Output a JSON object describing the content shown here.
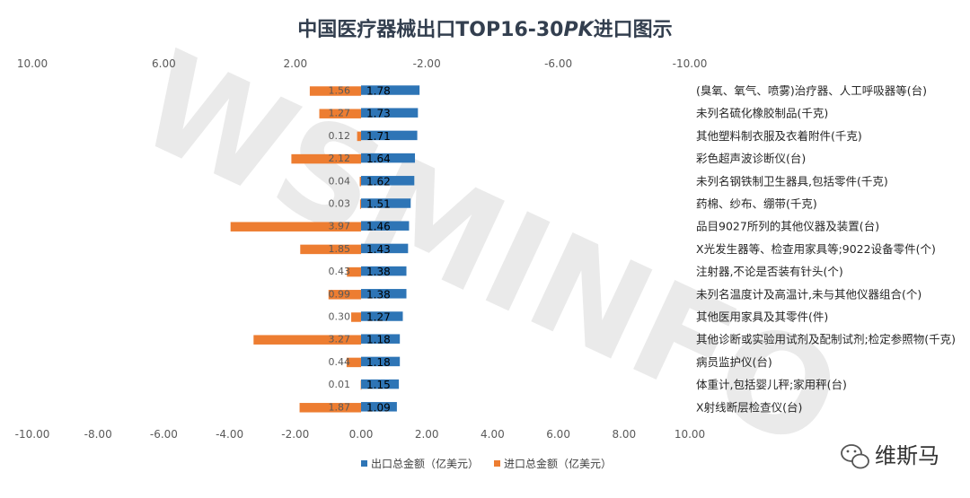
{
  "chart_data": {
    "type": "bar",
    "orientation": "horizontal",
    "title_parts": [
      "中国医疗器械出口TOP16-30",
      "PK",
      "进口图示"
    ],
    "categories": [
      "(臭氧、氧气、喷雾)治疗器、人工呼吸器等(台)",
      "未列名硫化橡胶制品(千克)",
      "其他塑料制衣服及衣着附件(千克)",
      "彩色超声波诊断仪(台)",
      "未列名钢铁制卫生器具,包括零件(千克)",
      "药棉、纱布、绷带(千克)",
      "品目9027所列的其他仪器及装置(台)",
      "X光发生器等、检查用家具等;9022设备零件(个)",
      "注射器,不论是否装有针头(个)",
      "未列名温度计及高温计,未与其他仪器组合(个)",
      "其他医用家具及其零件(件)",
      "其他诊断或实验用试剂及配制试剂;检定参照物(千克)",
      "病员监护仪(台)",
      "体重计,包括婴儿秤;家用秤(台)",
      "X射线断层检查仪(台)"
    ],
    "series": [
      {
        "name": "出口总金额（亿美元）",
        "color": "#2e75b6",
        "values": [
          1.78,
          1.73,
          1.71,
          1.64,
          1.62,
          1.51,
          1.46,
          1.43,
          1.38,
          1.38,
          1.27,
          1.18,
          1.18,
          1.15,
          1.09
        ],
        "labels": [
          "1.78",
          "1.73",
          "1.71",
          "1.64",
          "1.62",
          "1.51",
          "1.46",
          "1.43",
          "1.38",
          "1.38",
          "1.27",
          "1.18",
          "1.18",
          "1.15",
          "1.09"
        ]
      },
      {
        "name": "进口总金额（亿美元）",
        "color": "#ed7d31",
        "values": [
          1.56,
          1.27,
          0.12,
          2.12,
          0.04,
          0.03,
          3.97,
          1.85,
          0.43,
          0.99,
          0.3,
          3.27,
          0.44,
          0.01,
          1.87
        ],
        "labels": [
          "1.56",
          "1.27",
          "0.12",
          "2.12",
          "0.04",
          "0.03",
          "3.97",
          "1.85",
          "0.43",
          "0.99",
          "0.30",
          "3.27",
          "0.44",
          "0.01",
          "1.87"
        ]
      }
    ],
    "bottom_axis": {
      "range": [
        -10,
        10
      ],
      "ticks": [
        -10,
        -8,
        -6,
        -4,
        -2,
        0,
        2,
        4,
        6,
        8,
        10
      ],
      "tick_labels": [
        "-10.00",
        "-8.00",
        "-6.00",
        "-4.00",
        "-2.00",
        "0.00",
        "2.00",
        "4.00",
        "6.00",
        "8.00",
        "10.00"
      ]
    },
    "top_axis": {
      "reversed": true,
      "range": [
        10,
        -10
      ],
      "ticks": [
        10,
        6,
        2,
        -2,
        -6,
        -10
      ],
      "tick_labels": [
        "10.00",
        "6.00",
        "2.00",
        "-2.00",
        "-6.00",
        "-10.00"
      ]
    },
    "grid": false,
    "legend_position": "bottom"
  },
  "watermark": "WSMINFO",
  "brand": {
    "name": "维斯马",
    "icon": "wechat-icon"
  }
}
